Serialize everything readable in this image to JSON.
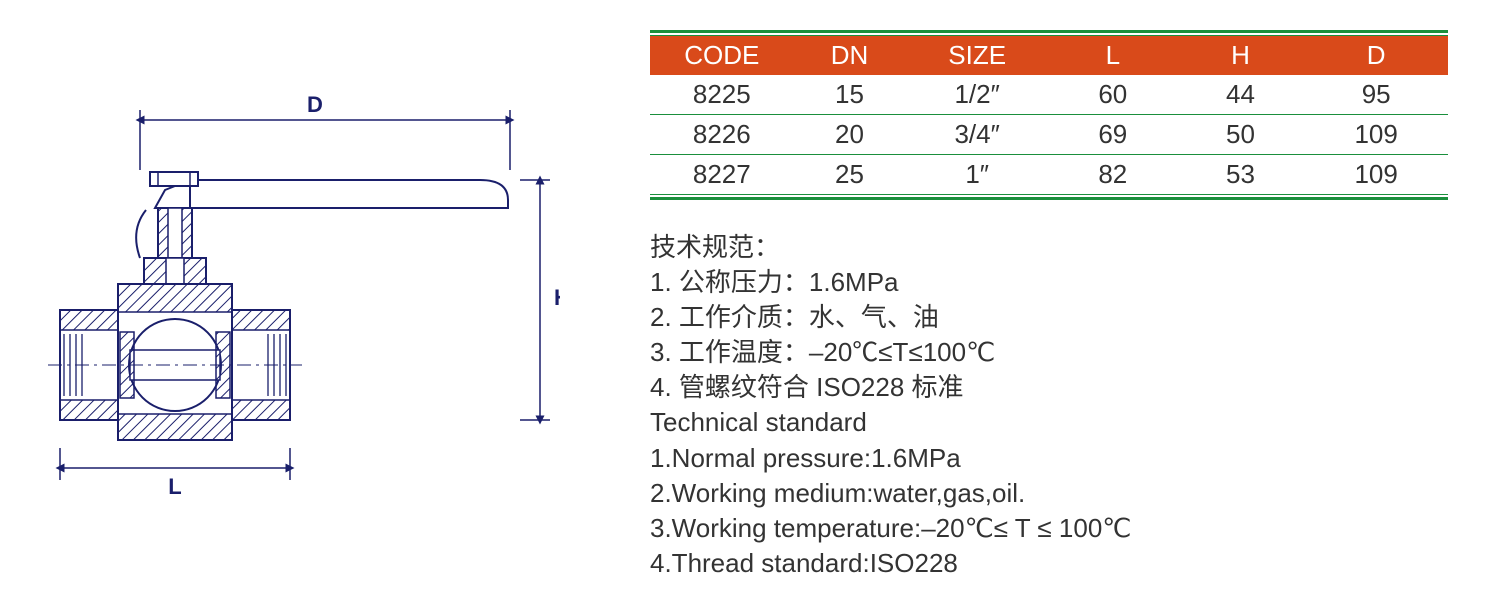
{
  "colors": {
    "accent_green": "#1a8f3c",
    "header_bg": "#d94a1a",
    "header_fg": "#ffffff",
    "text": "#333333",
    "diagram_stroke": "#1a1f6b",
    "hatch": "#1a1f6b"
  },
  "table": {
    "columns": [
      "CODE",
      "DN",
      "SIZE",
      "L",
      "H",
      "D"
    ],
    "rows": [
      [
        "8225",
        "15",
        "1/2″",
        "60",
        "44",
        "95"
      ],
      [
        "8226",
        "20",
        "3/4″",
        "69",
        "50",
        "109"
      ],
      [
        "8227",
        "25",
        "1″",
        "82",
        "53",
        "109"
      ]
    ],
    "col_widths_pct": [
      18,
      14,
      18,
      16,
      16,
      18
    ],
    "header_fontsize": 26,
    "cell_fontsize": 26,
    "rule_thick": 3,
    "rule_thin": 1
  },
  "tech_cn": {
    "title": "技术规范：",
    "lines": [
      "1. 公称压力：1.6MPa",
      "2. 工作介质：水、气、油",
      "3. 工作温度：–20℃≤T≤100℃",
      "4. 管螺纹符合 ISO228 标准"
    ]
  },
  "tech_en": {
    "title": "Technical standard",
    "lines": [
      "1.Normal pressure:1.6MPa",
      "2.Working medium:water,gas,oil.",
      "3.Working temperature:–20℃≤ T ≤ 100℃",
      "4.Thread standard:ISO228"
    ]
  },
  "diagram": {
    "labels": {
      "D": "D",
      "H": "H",
      "L": "L"
    },
    "stroke_width": 2,
    "label_fontsize": 22,
    "label_fontweight": "bold"
  }
}
